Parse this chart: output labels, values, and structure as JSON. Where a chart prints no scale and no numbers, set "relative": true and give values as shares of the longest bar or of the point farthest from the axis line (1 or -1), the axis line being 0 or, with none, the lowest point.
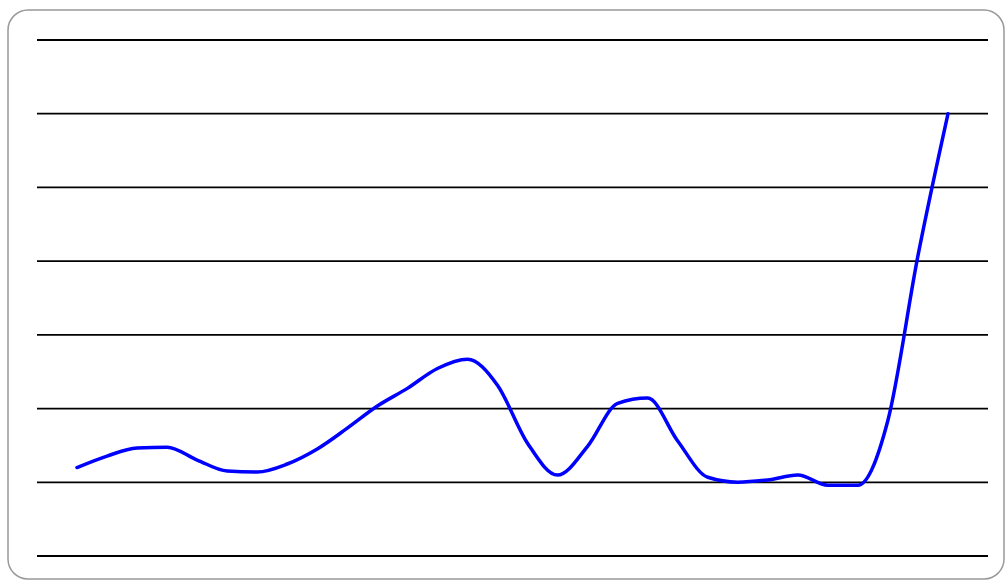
{
  "chart_data": {
    "type": "line",
    "relative": true,
    "grid": "y",
    "marker": "none",
    "line_style": "solid",
    "categories": [
      null,
      null,
      null,
      null,
      null,
      null,
      null,
      null,
      null,
      null,
      null,
      null,
      null,
      null,
      null,
      null,
      null,
      null,
      null,
      null,
      null,
      null,
      null,
      null,
      null,
      null,
      null,
      null,
      null,
      null
    ],
    "series": [
      {
        "color": "#0000ff",
        "values": [
          0.2,
          0.226,
          0.244,
          0.246,
          0.217,
          0.192,
          0.19,
          0.208,
          0.242,
          0.289,
          0.339,
          0.379,
          0.424,
          0.445,
          0.386,
          0.255,
          0.183,
          0.248,
          0.345,
          0.357,
          0.26,
          0.178,
          0.167,
          0.172,
          0.183,
          0.16,
          0.16,
          0.307,
          0.679,
          1
        ]
      }
    ]
  }
}
